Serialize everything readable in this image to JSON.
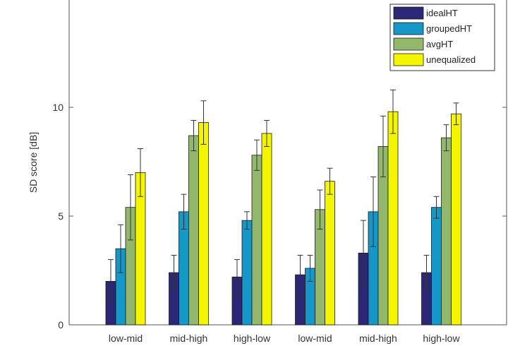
{
  "chart_data": {
    "type": "bar",
    "title": "",
    "xlabel": "",
    "ylabel": "SD score [dB]",
    "ylim": [
      0,
      15
    ],
    "yticks": [
      0,
      5,
      10
    ],
    "grid": false,
    "legend_position": "top-right",
    "categories": [
      "low-mid",
      "mid-high",
      "high-low",
      "low-mid",
      "mid-high",
      "high-low"
    ],
    "series": [
      {
        "name": "idealHT",
        "color": "#2b2676",
        "values": [
          2.0,
          2.4,
          2.2,
          2.3,
          3.3,
          2.4
        ],
        "error": [
          1.0,
          0.8,
          0.8,
          0.9,
          1.5,
          0.8
        ]
      },
      {
        "name": "groupedHT",
        "color": "#1597c7",
        "values": [
          3.5,
          5.2,
          4.8,
          2.6,
          5.2,
          5.4
        ],
        "error": [
          1.1,
          0.8,
          0.4,
          0.6,
          1.6,
          0.5
        ]
      },
      {
        "name": "avgHT",
        "color": "#93b76b",
        "values": [
          5.4,
          8.7,
          7.8,
          5.3,
          8.2,
          8.6
        ],
        "error": [
          1.5,
          0.7,
          0.7,
          0.9,
          1.4,
          0.6
        ]
      },
      {
        "name": "unequalized",
        "color": "#f5f500",
        "values": [
          7.0,
          9.3,
          8.8,
          6.6,
          9.8,
          9.7
        ],
        "error": [
          1.1,
          1.0,
          0.6,
          0.6,
          1.0,
          0.5
        ]
      }
    ]
  }
}
